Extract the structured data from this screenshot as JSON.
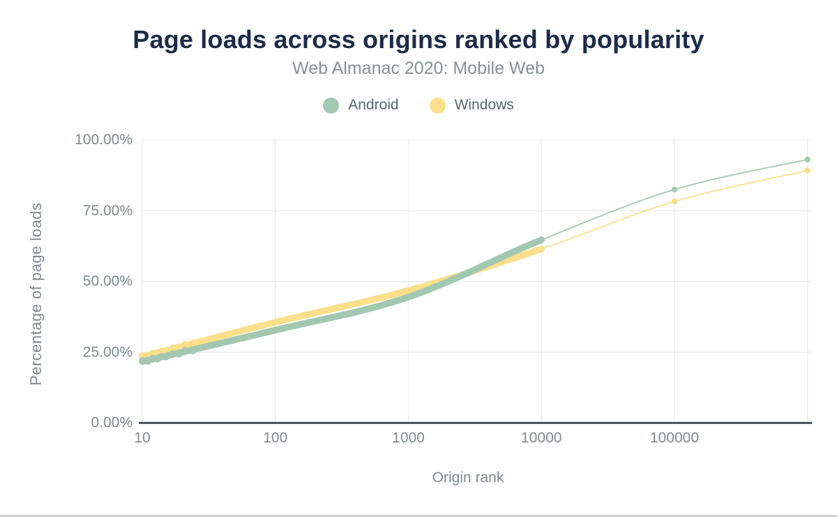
{
  "chart_data": {
    "type": "line",
    "title": "Page loads across origins ranked by popularity",
    "subtitle": "Web Almanac 2020: Mobile Web",
    "xlabel": "Origin rank",
    "ylabel": "Percentage of page loads",
    "x_scale": "log",
    "xlim": [
      10,
      1060000
    ],
    "ylim": [
      0,
      100
    ],
    "x_ticks": [
      {
        "label": "10",
        "rank": 10
      },
      {
        "label": "100",
        "rank": 100
      },
      {
        "label": "1000",
        "rank": 1000
      },
      {
        "label": "10000",
        "rank": 10000
      },
      {
        "label": "100000",
        "rank": 100000
      }
    ],
    "y_ticks": [
      {
        "label": "0.00%",
        "value": 0
      },
      {
        "label": "25.00%",
        "value": 25
      },
      {
        "label": "50.00%",
        "value": 50
      },
      {
        "label": "75.00%",
        "value": 75
      },
      {
        "label": "100.00%",
        "value": 100
      }
    ],
    "grid": "both",
    "legend_position": "top-center",
    "band_note": "dense overlapping point markers form a thick band from rank 10 to 10000; thin line with sparse markers beyond",
    "band_max_rank": 10000,
    "marker_ranks": [
      100000,
      1000000
    ],
    "series": [
      {
        "name": "Android",
        "color": "#a2c8b2",
        "points": [
          {
            "rank": 10,
            "pct": 21.7
          },
          {
            "rank": 100,
            "pct": 32.8
          },
          {
            "rank": 1000,
            "pct": 44.5
          },
          {
            "rank": 10000,
            "pct": 64.7
          },
          {
            "rank": 100000,
            "pct": 82.5
          },
          {
            "rank": 1000000,
            "pct": 93.1
          }
        ]
      },
      {
        "name": "Windows",
        "color": "#fbdf8b",
        "points": [
          {
            "rank": 10,
            "pct": 23.4
          },
          {
            "rank": 100,
            "pct": 35.6
          },
          {
            "rank": 1000,
            "pct": 46.8
          },
          {
            "rank": 10000,
            "pct": 61.5
          },
          {
            "rank": 100000,
            "pct": 78.3
          },
          {
            "rank": 1000000,
            "pct": 89.2
          }
        ]
      }
    ],
    "colors": {
      "title": "#1b2b49",
      "subtitle": "#8a9097",
      "axis_text": "#82888f",
      "legend_text": "#5d646b",
      "gridline": "#ededed",
      "baseline": "#2d333e"
    }
  }
}
